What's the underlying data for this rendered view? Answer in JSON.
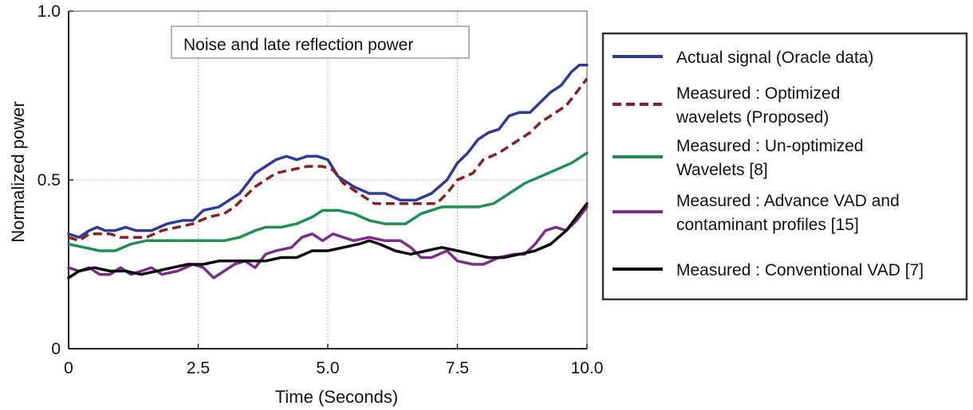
{
  "chart_data": {
    "type": "line",
    "title": "Noise and late reflection power",
    "xlabel": "Time (Seconds)",
    "ylabel": "Normalized power",
    "xlim": [
      0,
      10
    ],
    "ylim": [
      0,
      1
    ],
    "x_ticks": [
      {
        "v": 0,
        "label": "0"
      },
      {
        "v": 2.5,
        "label": "2.5"
      },
      {
        "v": 5,
        "label": "5.0"
      },
      {
        "v": 7.5,
        "label": "7.5"
      },
      {
        "v": 10,
        "label": "10.0"
      }
    ],
    "y_ticks": [
      {
        "v": 0,
        "label": "0"
      },
      {
        "v": 0.5,
        "label": "0.5"
      },
      {
        "v": 1,
        "label": "1.0"
      }
    ],
    "grid": true,
    "legend_position": "right",
    "series": [
      {
        "name": "Actual signal (Oracle data)",
        "color": "#2e3a9c",
        "dash": "solid",
        "points": [
          [
            0,
            0.34
          ],
          [
            0.2,
            0.33
          ],
          [
            0.4,
            0.35
          ],
          [
            0.55,
            0.36
          ],
          [
            0.7,
            0.35
          ],
          [
            0.9,
            0.35
          ],
          [
            1.1,
            0.36
          ],
          [
            1.3,
            0.35
          ],
          [
            1.6,
            0.35
          ],
          [
            1.9,
            0.37
          ],
          [
            2.2,
            0.38
          ],
          [
            2.4,
            0.38
          ],
          [
            2.6,
            0.41
          ],
          [
            2.9,
            0.42
          ],
          [
            3.1,
            0.44
          ],
          [
            3.3,
            0.46
          ],
          [
            3.5,
            0.5
          ],
          [
            3.6,
            0.52
          ],
          [
            3.8,
            0.54
          ],
          [
            4.0,
            0.56
          ],
          [
            4.2,
            0.57
          ],
          [
            4.4,
            0.56
          ],
          [
            4.6,
            0.57
          ],
          [
            4.8,
            0.57
          ],
          [
            5.0,
            0.56
          ],
          [
            5.2,
            0.51
          ],
          [
            5.5,
            0.48
          ],
          [
            5.8,
            0.46
          ],
          [
            6.1,
            0.46
          ],
          [
            6.4,
            0.44
          ],
          [
            6.7,
            0.44
          ],
          [
            7.0,
            0.46
          ],
          [
            7.3,
            0.5
          ],
          [
            7.5,
            0.55
          ],
          [
            7.7,
            0.58
          ],
          [
            7.9,
            0.62
          ],
          [
            8.1,
            0.64
          ],
          [
            8.3,
            0.65
          ],
          [
            8.5,
            0.69
          ],
          [
            8.7,
            0.7
          ],
          [
            8.9,
            0.7
          ],
          [
            9.1,
            0.73
          ],
          [
            9.3,
            0.76
          ],
          [
            9.5,
            0.78
          ],
          [
            9.7,
            0.82
          ],
          [
            9.85,
            0.84
          ],
          [
            10.0,
            0.84
          ]
        ]
      },
      {
        "name": "Measured : Optimized wavelets (Proposed)",
        "color": "#8c1f1f",
        "dash": "dashed",
        "points": [
          [
            0,
            0.33
          ],
          [
            0.2,
            0.32
          ],
          [
            0.4,
            0.34
          ],
          [
            0.6,
            0.34
          ],
          [
            0.8,
            0.34
          ],
          [
            1.0,
            0.33
          ],
          [
            1.2,
            0.33
          ],
          [
            1.5,
            0.33
          ],
          [
            1.8,
            0.35
          ],
          [
            2.1,
            0.36
          ],
          [
            2.4,
            0.37
          ],
          [
            2.7,
            0.39
          ],
          [
            3.0,
            0.4
          ],
          [
            3.2,
            0.42
          ],
          [
            3.4,
            0.45
          ],
          [
            3.6,
            0.48
          ],
          [
            3.8,
            0.5
          ],
          [
            4.0,
            0.52
          ],
          [
            4.3,
            0.53
          ],
          [
            4.6,
            0.54
          ],
          [
            4.9,
            0.54
          ],
          [
            5.1,
            0.53
          ],
          [
            5.3,
            0.49
          ],
          [
            5.6,
            0.46
          ],
          [
            5.9,
            0.43
          ],
          [
            6.2,
            0.43
          ],
          [
            6.5,
            0.43
          ],
          [
            6.8,
            0.43
          ],
          [
            7.1,
            0.43
          ],
          [
            7.3,
            0.46
          ],
          [
            7.5,
            0.5
          ],
          [
            7.8,
            0.52
          ],
          [
            8.0,
            0.56
          ],
          [
            8.3,
            0.58
          ],
          [
            8.6,
            0.61
          ],
          [
            8.9,
            0.64
          ],
          [
            9.1,
            0.67
          ],
          [
            9.4,
            0.7
          ],
          [
            9.6,
            0.72
          ],
          [
            9.8,
            0.76
          ],
          [
            10.0,
            0.8
          ]
        ]
      },
      {
        "name": "Measured : Un-optimized Wavelets [8]",
        "color": "#1e9150",
        "dash": "solid",
        "points": [
          [
            0,
            0.31
          ],
          [
            0.3,
            0.3
          ],
          [
            0.6,
            0.29
          ],
          [
            0.9,
            0.29
          ],
          [
            1.2,
            0.31
          ],
          [
            1.5,
            0.32
          ],
          [
            2.0,
            0.32
          ],
          [
            2.5,
            0.32
          ],
          [
            3.0,
            0.32
          ],
          [
            3.3,
            0.33
          ],
          [
            3.6,
            0.35
          ],
          [
            3.8,
            0.36
          ],
          [
            4.1,
            0.36
          ],
          [
            4.4,
            0.37
          ],
          [
            4.7,
            0.39
          ],
          [
            4.9,
            0.41
          ],
          [
            5.2,
            0.41
          ],
          [
            5.5,
            0.4
          ],
          [
            5.8,
            0.38
          ],
          [
            6.1,
            0.37
          ],
          [
            6.5,
            0.37
          ],
          [
            6.8,
            0.4
          ],
          [
            7.2,
            0.42
          ],
          [
            7.6,
            0.42
          ],
          [
            7.9,
            0.42
          ],
          [
            8.2,
            0.43
          ],
          [
            8.5,
            0.46
          ],
          [
            8.8,
            0.49
          ],
          [
            9.1,
            0.51
          ],
          [
            9.4,
            0.53
          ],
          [
            9.7,
            0.55
          ],
          [
            10.0,
            0.58
          ]
        ]
      },
      {
        "name": "Measured : Advance VAD and contaminant profiles  [15]",
        "color": "#7b2d8a",
        "dash": "solid",
        "points": [
          [
            0,
            0.24
          ],
          [
            0.2,
            0.23
          ],
          [
            0.4,
            0.24
          ],
          [
            0.6,
            0.22
          ],
          [
            0.8,
            0.22
          ],
          [
            1.0,
            0.24
          ],
          [
            1.2,
            0.22
          ],
          [
            1.4,
            0.23
          ],
          [
            1.6,
            0.24
          ],
          [
            1.8,
            0.22
          ],
          [
            2.1,
            0.23
          ],
          [
            2.4,
            0.25
          ],
          [
            2.6,
            0.24
          ],
          [
            2.8,
            0.21
          ],
          [
            3.0,
            0.23
          ],
          [
            3.2,
            0.25
          ],
          [
            3.4,
            0.26
          ],
          [
            3.6,
            0.24
          ],
          [
            3.8,
            0.28
          ],
          [
            4.0,
            0.29
          ],
          [
            4.3,
            0.3
          ],
          [
            4.5,
            0.33
          ],
          [
            4.7,
            0.34
          ],
          [
            4.9,
            0.32
          ],
          [
            5.1,
            0.34
          ],
          [
            5.3,
            0.33
          ],
          [
            5.5,
            0.32
          ],
          [
            5.8,
            0.33
          ],
          [
            6.1,
            0.32
          ],
          [
            6.4,
            0.32
          ],
          [
            6.6,
            0.3
          ],
          [
            6.8,
            0.27
          ],
          [
            7.0,
            0.27
          ],
          [
            7.3,
            0.29
          ],
          [
            7.5,
            0.26
          ],
          [
            7.8,
            0.25
          ],
          [
            8.0,
            0.25
          ],
          [
            8.3,
            0.27
          ],
          [
            8.6,
            0.28
          ],
          [
            8.8,
            0.28
          ],
          [
            9.0,
            0.31
          ],
          [
            9.2,
            0.35
          ],
          [
            9.4,
            0.36
          ],
          [
            9.6,
            0.35
          ],
          [
            9.8,
            0.38
          ],
          [
            10.0,
            0.42
          ]
        ]
      },
      {
        "name": "Measured : Conventional VAD [7]",
        "color": "#0a0a0a",
        "dash": "solid",
        "points": [
          [
            0,
            0.21
          ],
          [
            0.2,
            0.23
          ],
          [
            0.5,
            0.24
          ],
          [
            0.8,
            0.23
          ],
          [
            1.1,
            0.23
          ],
          [
            1.4,
            0.22
          ],
          [
            1.7,
            0.23
          ],
          [
            2.0,
            0.24
          ],
          [
            2.3,
            0.25
          ],
          [
            2.6,
            0.25
          ],
          [
            2.9,
            0.26
          ],
          [
            3.2,
            0.26
          ],
          [
            3.5,
            0.26
          ],
          [
            3.8,
            0.26
          ],
          [
            4.1,
            0.27
          ],
          [
            4.4,
            0.27
          ],
          [
            4.7,
            0.29
          ],
          [
            5.0,
            0.29
          ],
          [
            5.3,
            0.3
          ],
          [
            5.6,
            0.31
          ],
          [
            5.8,
            0.32
          ],
          [
            6.0,
            0.31
          ],
          [
            6.3,
            0.29
          ],
          [
            6.6,
            0.28
          ],
          [
            6.9,
            0.29
          ],
          [
            7.2,
            0.3
          ],
          [
            7.5,
            0.29
          ],
          [
            7.8,
            0.28
          ],
          [
            8.1,
            0.27
          ],
          [
            8.4,
            0.27
          ],
          [
            8.7,
            0.28
          ],
          [
            9.0,
            0.29
          ],
          [
            9.3,
            0.31
          ],
          [
            9.6,
            0.35
          ],
          [
            9.8,
            0.39
          ],
          [
            10.0,
            0.43
          ]
        ]
      }
    ],
    "legend": [
      {
        "lines": [
          "Actual signal (Oracle data)"
        ]
      },
      {
        "lines": [
          "Measured : Optimized",
          "wavelets (Proposed)"
        ]
      },
      {
        "lines": [
          "Measured : Un-optimized",
          "Wavelets [8]"
        ]
      },
      {
        "lines": [
          "Measured : Advance VAD and",
          "contaminant profiles  [15]"
        ]
      },
      {
        "lines": [
          "Measured : Conventional VAD [7]"
        ]
      }
    ]
  }
}
